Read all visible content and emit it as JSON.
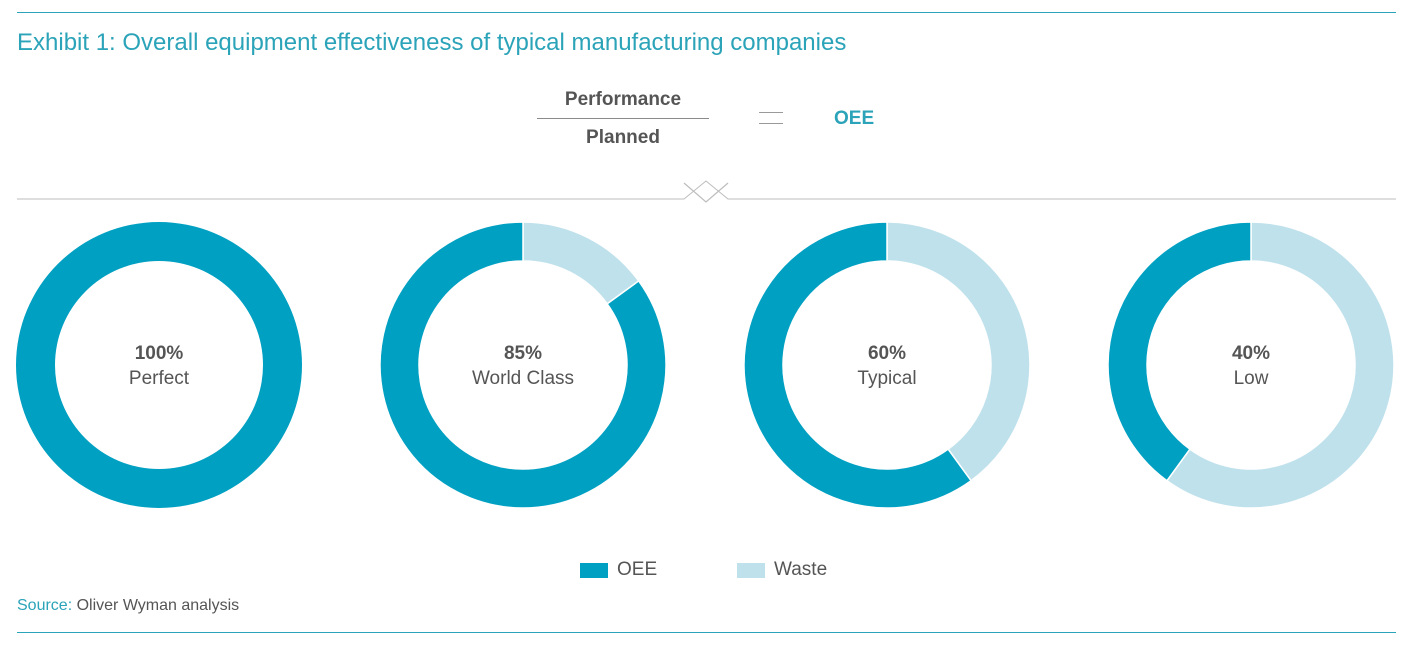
{
  "title": "Exhibit 1: Overall equipment effectiveness of typical manufacturing companies",
  "formula": {
    "numerator": "Performance",
    "denominator": "Planned",
    "result": "OEE"
  },
  "colors": {
    "accent": "#2ba3b8",
    "oee": "#00a0c2",
    "waste": "#bfe1ec",
    "text": "#555555"
  },
  "chart_data": {
    "type": "pie",
    "series_names": [
      "OEE",
      "Waste"
    ],
    "charts": [
      {
        "percent_label": "100%",
        "label": "Perfect",
        "oee": 100,
        "waste": 0
      },
      {
        "percent_label": "85%",
        "label": "World Class",
        "oee": 85,
        "waste": 15
      },
      {
        "percent_label": "60%",
        "label": "Typical",
        "oee": 60,
        "waste": 40
      },
      {
        "percent_label": "40%",
        "label": "Low",
        "oee": 40,
        "waste": 60
      }
    ]
  },
  "legend": {
    "oee": "OEE",
    "waste": "Waste"
  },
  "source": {
    "label": "Source:",
    "text": "Oliver Wyman analysis"
  }
}
